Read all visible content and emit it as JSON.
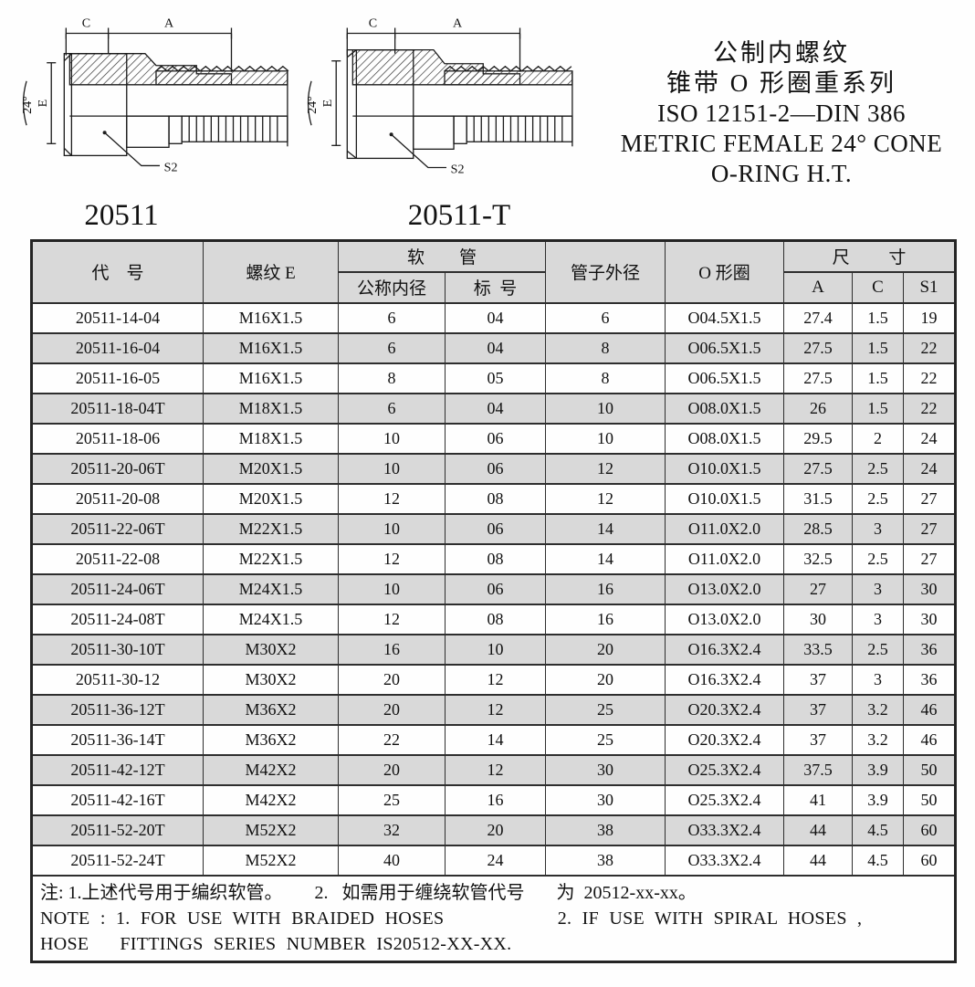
{
  "header": {
    "title_zh_line1": "公制内螺纹",
    "title_zh_line2": "锥带 O 形圈重系列",
    "title_iso": "ISO 12151-2—DIN 386",
    "title_en_line1": "METRIC FEMALE 24° CONE",
    "title_en_line2": "O-RING H.T.",
    "model_left": "20511",
    "model_right": "20511-T"
  },
  "drawing_labels": {
    "dim_c": "C",
    "dim_a": "A",
    "dim_e": "E",
    "angle": "24°",
    "s2": "S2"
  },
  "table": {
    "header": {
      "col_code": "代    号",
      "col_thread": "螺纹 E",
      "col_hose": "软        管",
      "col_hose_id": "公称内径",
      "col_hose_dash": "标  号",
      "col_tube_od": "管子外径",
      "col_oring": "O 形圈",
      "col_dims": "尺         寸",
      "col_a": "A",
      "col_c": "C",
      "col_s1": "S1"
    },
    "rows": [
      [
        "20511-14-04",
        "M16X1.5",
        "6",
        "04",
        "6",
        "O04.5X1.5",
        "27.4",
        "1.5",
        "19"
      ],
      [
        "20511-16-04",
        "M16X1.5",
        "6",
        "04",
        "8",
        "O06.5X1.5",
        "27.5",
        "1.5",
        "22"
      ],
      [
        "20511-16-05",
        "M16X1.5",
        "8",
        "05",
        "8",
        "O06.5X1.5",
        "27.5",
        "1.5",
        "22"
      ],
      [
        "20511-18-04T",
        "M18X1.5",
        "6",
        "04",
        "10",
        "O08.0X1.5",
        "26",
        "1.5",
        "22"
      ],
      [
        "20511-18-06",
        "M18X1.5",
        "10",
        "06",
        "10",
        "O08.0X1.5",
        "29.5",
        "2",
        "24"
      ],
      [
        "20511-20-06T",
        "M20X1.5",
        "10",
        "06",
        "12",
        "O10.0X1.5",
        "27.5",
        "2.5",
        "24"
      ],
      [
        "20511-20-08",
        "M20X1.5",
        "12",
        "08",
        "12",
        "O10.0X1.5",
        "31.5",
        "2.5",
        "27"
      ],
      [
        "20511-22-06T",
        "M22X1.5",
        "10",
        "06",
        "14",
        "O11.0X2.0",
        "28.5",
        "3",
        "27"
      ],
      [
        "20511-22-08",
        "M22X1.5",
        "12",
        "08",
        "14",
        "O11.0X2.0",
        "32.5",
        "2.5",
        "27"
      ],
      [
        "20511-24-06T",
        "M24X1.5",
        "10",
        "06",
        "16",
        "O13.0X2.0",
        "27",
        "3",
        "30"
      ],
      [
        "20511-24-08T",
        "M24X1.5",
        "12",
        "08",
        "16",
        "O13.0X2.0",
        "30",
        "3",
        "30"
      ],
      [
        "20511-30-10T",
        "M30X2",
        "16",
        "10",
        "20",
        "O16.3X2.4",
        "33.5",
        "2.5",
        "36"
      ],
      [
        "20511-30-12",
        "M30X2",
        "20",
        "12",
        "20",
        "O16.3X2.4",
        "37",
        "3",
        "36"
      ],
      [
        "20511-36-12T",
        "M36X2",
        "20",
        "12",
        "25",
        "O20.3X2.4",
        "37",
        "3.2",
        "46"
      ],
      [
        "20511-36-14T",
        "M36X2",
        "22",
        "14",
        "25",
        "O20.3X2.4",
        "37",
        "3.2",
        "46"
      ],
      [
        "20511-42-12T",
        "M42X2",
        "20",
        "12",
        "30",
        "O25.3X2.4",
        "37.5",
        "3.9",
        "50"
      ],
      [
        "20511-42-16T",
        "M42X2",
        "25",
        "16",
        "30",
        "O25.3X2.4",
        "41",
        "3.9",
        "50"
      ],
      [
        "20511-52-20T",
        "M52X2",
        "32",
        "20",
        "38",
        "O33.3X2.4",
        "44",
        "4.5",
        "60"
      ],
      [
        "20511-52-24T",
        "M52X2",
        "40",
        "24",
        "38",
        "O33.3X2.4",
        "44",
        "4.5",
        "60"
      ]
    ]
  },
  "notes": {
    "line1_zh": "注: 1.上述代号用于编织软管。       2.   如需用于缠绕软管代号       为  20512-xx-xx。",
    "line2_en": "NOTE : 1. FOR USE WITH BRAIDED HOSES           2. IF USE WITH SPIRAL HOSES ,",
    "line3_en": "HOSE   FITTINGS SERIES NUMBER IS20512-XX-XX."
  },
  "colors": {
    "row_alt": "#d9d9d9",
    "border": "#2e2e2e"
  }
}
